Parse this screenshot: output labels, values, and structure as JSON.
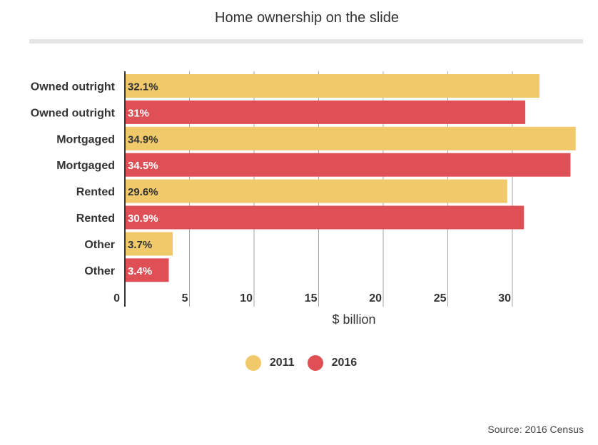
{
  "header": {
    "title": "Home ownership on the slide",
    "source": "Source: 2016 Census"
  },
  "colors": {
    "2011": "#f0c96a",
    "2016": "#de5055",
    "grid": "#a6a6a6",
    "axis": "#333333"
  },
  "chart_data": {
    "type": "bar",
    "orientation": "horizontal",
    "title": "Home ownership on the slide",
    "xlabel": "$ billion",
    "ylabel": "",
    "xlim": [
      0,
      35
    ],
    "xticks": [
      0,
      5,
      10,
      15,
      20,
      25,
      30
    ],
    "grid": true,
    "legend_position": "bottom-center",
    "bars": [
      {
        "category": "Owned outright",
        "series": "2011",
        "value": 32.1,
        "label": "32.1%"
      },
      {
        "category": "Owned outright",
        "series": "2016",
        "value": 31.0,
        "label": "31%"
      },
      {
        "category": "Mortgaged",
        "series": "2011",
        "value": 34.9,
        "label": "34.9%"
      },
      {
        "category": "Mortgaged",
        "series": "2016",
        "value": 34.5,
        "label": "34.5%"
      },
      {
        "category": "Rented",
        "series": "2011",
        "value": 29.6,
        "label": "29.6%"
      },
      {
        "category": "Rented",
        "series": "2016",
        "value": 30.9,
        "label": "30.9%"
      },
      {
        "category": "Other",
        "series": "2011",
        "value": 3.7,
        "label": "3.7%"
      },
      {
        "category": "Other",
        "series": "2016",
        "value": 3.4,
        "label": "3.4%"
      }
    ],
    "legend": [
      {
        "name": "2011"
      },
      {
        "name": "2016"
      }
    ]
  }
}
